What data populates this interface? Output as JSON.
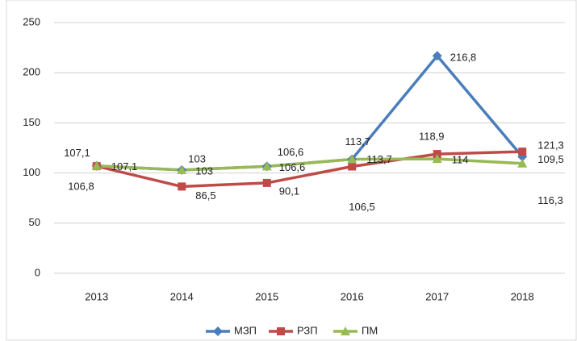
{
  "chart_data": {
    "type": "line",
    "categories": [
      "2013",
      "2014",
      "2015",
      "2016",
      "2017",
      "2018"
    ],
    "series": [
      {
        "name": "МЗП",
        "color": "#4a7ebb",
        "values": [
          107.1,
          103,
          106.6,
          113.7,
          216.8,
          116.3
        ],
        "value_labels": [
          "107,1",
          "103",
          "106,6",
          "113,7",
          "216,8",
          "116,3"
        ]
      },
      {
        "name": "РЗП",
        "color": "#be4b48",
        "values": [
          106.8,
          86.5,
          90.1,
          106.5,
          118.9,
          121.3
        ],
        "value_labels": [
          "106,8",
          "86,5",
          "90,1",
          "106,5",
          "118,9",
          "121,3"
        ]
      },
      {
        "name": "ПМ",
        "color": "#98b954",
        "values": [
          107.1,
          103,
          106.6,
          113.7,
          114,
          109.5
        ],
        "value_labels": [
          "107,1",
          "103",
          "106,6",
          "113,7",
          "114",
          "109,5"
        ]
      }
    ],
    "ylim": [
      0,
      250
    ],
    "yticks": [
      0,
      50,
      100,
      150,
      200,
      250
    ],
    "grid": true,
    "legend": "bottom"
  }
}
